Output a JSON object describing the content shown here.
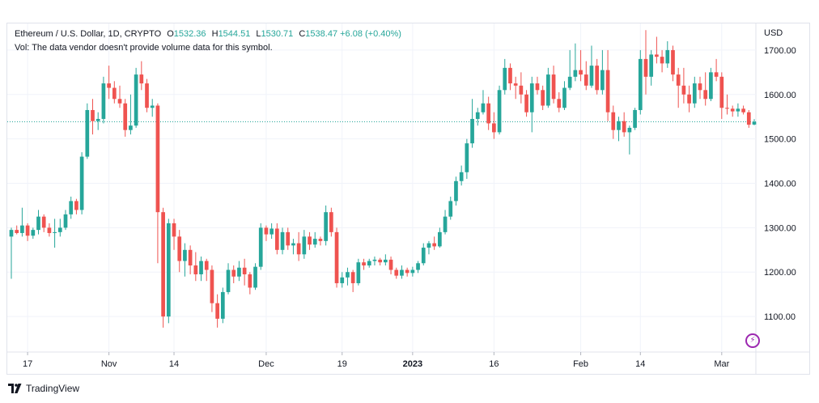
{
  "legend": {
    "symbol": "Ethereum / U.S. Dollar, 1D, CRYPTO",
    "open_label": "O",
    "open": "1532.36",
    "high_label": "H",
    "high": "1544.51",
    "low_label": "L",
    "low": "1530.71",
    "close_label": "C",
    "close": "1538.47",
    "change": "+6.08 (+0.40%)",
    "volume_note": "Vol: The data vendor doesn't provide volume data for this symbol."
  },
  "brand": {
    "name": "TradingView"
  },
  "colors": {
    "up": "#26a69a",
    "down": "#ef5350",
    "grid": "#f0f3fa",
    "current_price_line": "#26a69a"
  },
  "chart_data": {
    "type": "candlestick",
    "series_name": "Ethereum / U.S. Dollar, 1D",
    "price_axis": {
      "currency_label": "USD",
      "ticks": [
        "1100.00",
        "1200.00",
        "1300.00",
        "1400.00",
        "1500.00",
        "1600.00",
        "1700.00"
      ],
      "ylim": [
        1020,
        1760
      ]
    },
    "time_axis": {
      "ticks": [
        {
          "label": "17",
          "index": 3,
          "bold": false
        },
        {
          "label": "Nov",
          "index": 18,
          "bold": false
        },
        {
          "label": "14",
          "index": 30,
          "bold": false
        },
        {
          "label": "Dec",
          "index": 47,
          "bold": false
        },
        {
          "label": "19",
          "index": 61,
          "bold": false
        },
        {
          "label": "2023",
          "index": 74,
          "bold": true
        },
        {
          "label": "16",
          "index": 89,
          "bold": false
        },
        {
          "label": "Feb",
          "index": 105,
          "bold": false
        },
        {
          "label": "14",
          "index": 116,
          "bold": false
        },
        {
          "label": "Mar",
          "index": 131,
          "bold": false
        }
      ]
    },
    "current_price": 1538.47,
    "candles": [
      [
        1280,
        1300,
        1185,
        1295
      ],
      [
        1295,
        1305,
        1285,
        1288
      ],
      [
        1288,
        1345,
        1280,
        1305
      ],
      [
        1305,
        1310,
        1270,
        1282
      ],
      [
        1282,
        1300,
        1275,
        1295
      ],
      [
        1295,
        1340,
        1285,
        1325
      ],
      [
        1325,
        1330,
        1290,
        1300
      ],
      [
        1300,
        1310,
        1280,
        1288
      ],
      [
        1288,
        1320,
        1255,
        1290
      ],
      [
        1290,
        1320,
        1280,
        1300
      ],
      [
        1300,
        1340,
        1295,
        1330
      ],
      [
        1330,
        1370,
        1320,
        1360
      ],
      [
        1360,
        1365,
        1330,
        1340
      ],
      [
        1340,
        1470,
        1330,
        1460
      ],
      [
        1460,
        1580,
        1455,
        1565
      ],
      [
        1565,
        1590,
        1510,
        1540
      ],
      [
        1540,
        1560,
        1520,
        1545
      ],
      [
        1545,
        1640,
        1535,
        1625
      ],
      [
        1625,
        1665,
        1590,
        1615
      ],
      [
        1615,
        1630,
        1580,
        1590
      ],
      [
        1590,
        1620,
        1570,
        1580
      ],
      [
        1580,
        1590,
        1505,
        1520
      ],
      [
        1520,
        1600,
        1510,
        1530
      ],
      [
        1530,
        1660,
        1525,
        1645
      ],
      [
        1645,
        1675,
        1610,
        1625
      ],
      [
        1625,
        1635,
        1560,
        1570
      ],
      [
        1570,
        1590,
        1550,
        1575
      ],
      [
        1575,
        1580,
        1220,
        1335
      ],
      [
        1335,
        1345,
        1075,
        1100
      ],
      [
        1100,
        1320,
        1085,
        1310
      ],
      [
        1310,
        1320,
        1250,
        1280
      ],
      [
        1280,
        1295,
        1200,
        1225
      ],
      [
        1225,
        1265,
        1190,
        1250
      ],
      [
        1250,
        1260,
        1195,
        1215
      ],
      [
        1215,
        1245,
        1180,
        1195
      ],
      [
        1195,
        1235,
        1180,
        1225
      ],
      [
        1225,
        1230,
        1180,
        1205
      ],
      [
        1205,
        1215,
        1110,
        1130
      ],
      [
        1130,
        1150,
        1075,
        1095
      ],
      [
        1095,
        1165,
        1085,
        1155
      ],
      [
        1155,
        1220,
        1150,
        1205
      ],
      [
        1205,
        1215,
        1175,
        1190
      ],
      [
        1190,
        1225,
        1180,
        1210
      ],
      [
        1210,
        1230,
        1170,
        1195
      ],
      [
        1195,
        1200,
        1150,
        1165
      ],
      [
        1165,
        1220,
        1160,
        1212
      ],
      [
        1212,
        1310,
        1205,
        1300
      ],
      [
        1300,
        1305,
        1270,
        1285
      ],
      [
        1285,
        1310,
        1275,
        1298
      ],
      [
        1298,
        1310,
        1240,
        1250
      ],
      [
        1250,
        1300,
        1240,
        1290
      ],
      [
        1290,
        1300,
        1250,
        1260
      ],
      [
        1260,
        1275,
        1240,
        1265
      ],
      [
        1265,
        1290,
        1225,
        1240
      ],
      [
        1240,
        1295,
        1230,
        1280
      ],
      [
        1280,
        1290,
        1250,
        1262
      ],
      [
        1262,
        1290,
        1255,
        1275
      ],
      [
        1275,
        1280,
        1260,
        1270
      ],
      [
        1270,
        1350,
        1260,
        1335
      ],
      [
        1335,
        1345,
        1280,
        1290
      ],
      [
        1290,
        1300,
        1165,
        1175
      ],
      [
        1175,
        1200,
        1165,
        1188
      ],
      [
        1188,
        1210,
        1170,
        1200
      ],
      [
        1200,
        1205,
        1155,
        1175
      ],
      [
        1175,
        1230,
        1170,
        1222
      ],
      [
        1222,
        1230,
        1205,
        1215
      ],
      [
        1215,
        1230,
        1210,
        1225
      ],
      [
        1225,
        1235,
        1215,
        1228
      ],
      [
        1228,
        1232,
        1215,
        1222
      ],
      [
        1222,
        1240,
        1215,
        1228
      ],
      [
        1228,
        1235,
        1195,
        1205
      ],
      [
        1205,
        1210,
        1185,
        1192
      ],
      [
        1192,
        1215,
        1185,
        1205
      ],
      [
        1205,
        1210,
        1190,
        1198
      ],
      [
        1198,
        1212,
        1190,
        1205
      ],
      [
        1205,
        1225,
        1198,
        1220
      ],
      [
        1220,
        1265,
        1215,
        1255
      ],
      [
        1255,
        1270,
        1240,
        1265
      ],
      [
        1265,
        1280,
        1250,
        1258
      ],
      [
        1258,
        1300,
        1255,
        1290
      ],
      [
        1290,
        1340,
        1285,
        1325
      ],
      [
        1325,
        1370,
        1318,
        1360
      ],
      [
        1360,
        1415,
        1350,
        1405
      ],
      [
        1405,
        1440,
        1395,
        1425
      ],
      [
        1425,
        1500,
        1410,
        1490
      ],
      [
        1490,
        1590,
        1480,
        1545
      ],
      [
        1545,
        1570,
        1530,
        1560
      ],
      [
        1560,
        1610,
        1555,
        1580
      ],
      [
        1580,
        1595,
        1520,
        1535
      ],
      [
        1535,
        1560,
        1500,
        1515
      ],
      [
        1515,
        1620,
        1510,
        1610
      ],
      [
        1610,
        1680,
        1600,
        1660
      ],
      [
        1660,
        1670,
        1610,
        1625
      ],
      [
        1625,
        1640,
        1590,
        1620
      ],
      [
        1620,
        1650,
        1580,
        1600
      ],
      [
        1600,
        1610,
        1550,
        1560
      ],
      [
        1560,
        1640,
        1515,
        1625
      ],
      [
        1625,
        1640,
        1600,
        1610
      ],
      [
        1610,
        1620,
        1565,
        1575
      ],
      [
        1575,
        1660,
        1570,
        1645
      ],
      [
        1645,
        1665,
        1580,
        1590
      ],
      [
        1590,
        1605,
        1560,
        1570
      ],
      [
        1570,
        1630,
        1565,
        1615
      ],
      [
        1615,
        1700,
        1610,
        1640
      ],
      [
        1640,
        1715,
        1630,
        1655
      ],
      [
        1655,
        1700,
        1630,
        1645
      ],
      [
        1645,
        1675,
        1610,
        1620
      ],
      [
        1620,
        1710,
        1615,
        1665
      ],
      [
        1665,
        1680,
        1600,
        1610
      ],
      [
        1610,
        1700,
        1600,
        1655
      ],
      [
        1655,
        1700,
        1540,
        1560
      ],
      [
        1560,
        1575,
        1500,
        1520
      ],
      [
        1520,
        1550,
        1495,
        1540
      ],
      [
        1540,
        1560,
        1505,
        1515
      ],
      [
        1515,
        1530,
        1465,
        1525
      ],
      [
        1525,
        1570,
        1520,
        1565
      ],
      [
        1565,
        1700,
        1555,
        1680
      ],
      [
        1680,
        1745,
        1600,
        1640
      ],
      [
        1640,
        1700,
        1620,
        1690
      ],
      [
        1690,
        1730,
        1670,
        1685
      ],
      [
        1685,
        1700,
        1650,
        1670
      ],
      [
        1670,
        1720,
        1660,
        1700
      ],
      [
        1700,
        1710,
        1630,
        1645
      ],
      [
        1645,
        1660,
        1570,
        1620
      ],
      [
        1620,
        1660,
        1580,
        1600
      ],
      [
        1600,
        1620,
        1560,
        1580
      ],
      [
        1580,
        1640,
        1570,
        1625
      ],
      [
        1625,
        1640,
        1590,
        1610
      ],
      [
        1610,
        1650,
        1575,
        1590
      ],
      [
        1590,
        1660,
        1585,
        1650
      ],
      [
        1650,
        1680,
        1630,
        1640
      ],
      [
        1640,
        1650,
        1545,
        1570
      ],
      [
        1570,
        1600,
        1555,
        1568
      ],
      [
        1568,
        1575,
        1550,
        1562
      ],
      [
        1562,
        1580,
        1550,
        1568
      ],
      [
        1568,
        1575,
        1555,
        1560
      ],
      [
        1560,
        1565,
        1525,
        1532
      ],
      [
        1532.36,
        1544.51,
        1530.71,
        1538.47
      ]
    ]
  }
}
